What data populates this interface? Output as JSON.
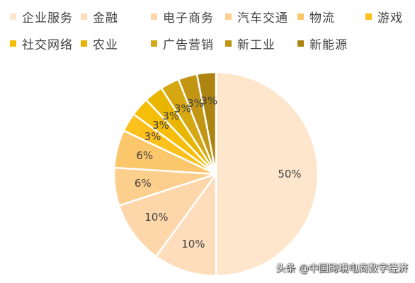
{
  "chart_data": {
    "type": "pie",
    "title": "",
    "start_angle_deg": 0,
    "direction": "clockwise",
    "slices": [
      {
        "label": "企业服务",
        "value": 50,
        "display": "50%",
        "color": "#FDE6CC"
      },
      {
        "label": "金融",
        "value": 10,
        "display": "10%",
        "color": "#FDDDBB"
      },
      {
        "label": "电子商务",
        "value": 10,
        "display": "10%",
        "color": "#FDD7A9"
      },
      {
        "label": "汽车交通",
        "value": 6,
        "display": "6%",
        "color": "#FDCF8D"
      },
      {
        "label": "物流",
        "value": 6,
        "display": "6%",
        "color": "#FCC66A"
      },
      {
        "label": "游戏",
        "value": 3,
        "display": "3%",
        "color": "#FDC01D"
      },
      {
        "label": "社交网络",
        "value": 3,
        "display": "3%",
        "color": "#F6BE08"
      },
      {
        "label": "农业",
        "value": 3,
        "display": "3%",
        "color": "#E8B600"
      },
      {
        "label": "广告营销",
        "value": 3,
        "display": "3%",
        "color": "#D5A712"
      },
      {
        "label": "新工业",
        "value": 3,
        "display": "3%",
        "color": "#C39514"
      },
      {
        "label": "新能源",
        "value": 3,
        "display": "3%",
        "color": "#AD8312"
      }
    ],
    "legend_position": "top"
  },
  "watermark": "头条 @中国跨境电商数字经济"
}
